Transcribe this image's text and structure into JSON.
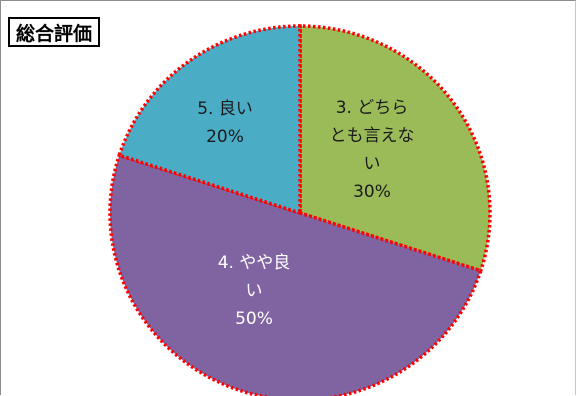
{
  "chart_data": {
    "type": "pie",
    "title": "総合評価",
    "slices": [
      {
        "label_lines": [
          "3. どちら",
          "とも言えな",
          "い"
        ],
        "value_label": "30%",
        "value": 30,
        "color": "#9bbb59"
      },
      {
        "label_lines": [
          "4. やや良",
          "い"
        ],
        "value_label": "50%",
        "value": 50,
        "color": "#8064a2"
      },
      {
        "label_lines": [
          "5. 良い"
        ],
        "value_label": "20%",
        "value": 20,
        "color": "#4bacc6"
      }
    ],
    "slice_border": {
      "color": "#ff0000",
      "style": "dotted"
    }
  }
}
